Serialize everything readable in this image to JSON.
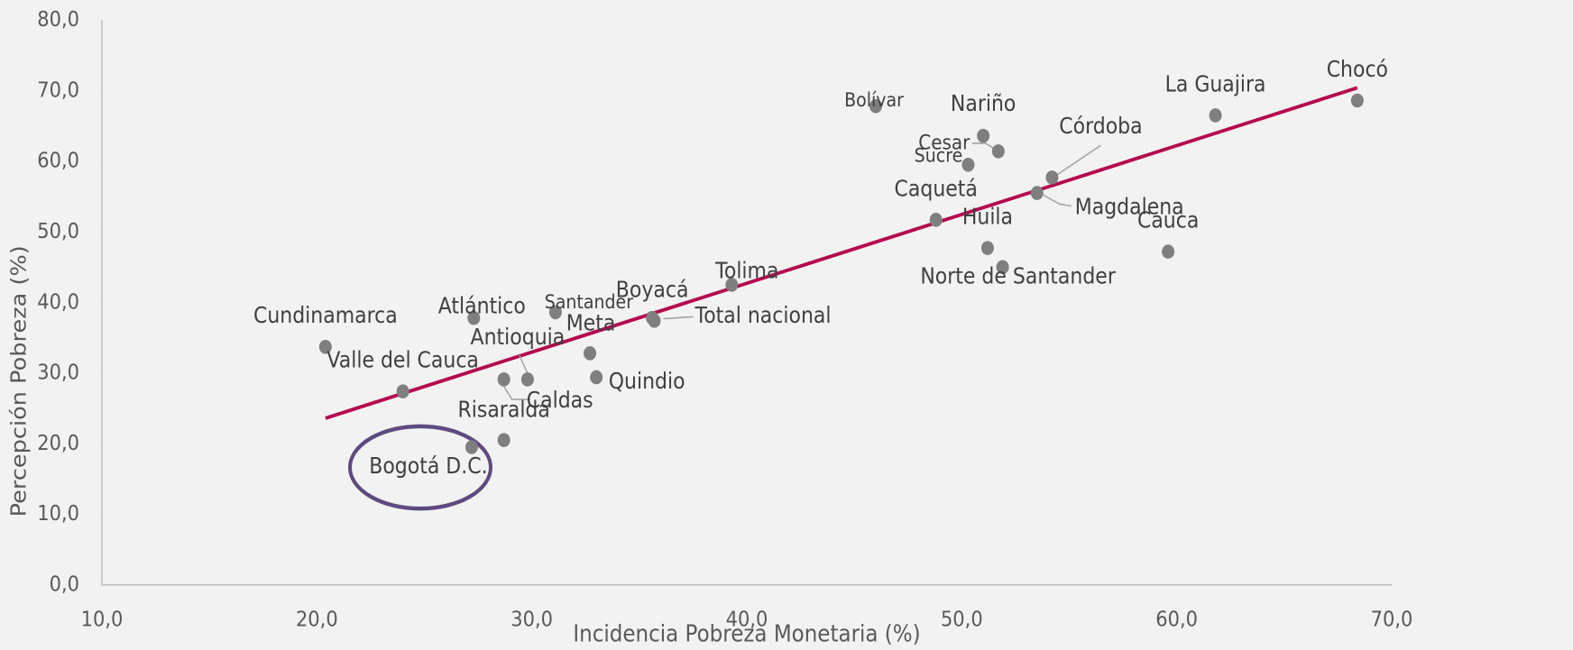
{
  "chart_data": {
    "type": "scatter",
    "xlabel": "Incidencia Pobreza Monetaria (%)",
    "ylabel": "Percepción Pobreza (%)",
    "labels": [
      "Cundinamarca",
      "Valle del Cauca",
      "Bogotá D.C.",
      "Risaralda",
      "Atlántico",
      "Caldas",
      "Antioquia",
      "Santander",
      "Meta",
      "Quindio",
      "Total nacional",
      "Boyacá",
      "Tolima",
      "Bolívar",
      "Caquetá",
      "Sucre",
      "Nariño",
      "Cesar",
      "Huila",
      "Norte de Santander",
      "Magdalena",
      "Córdoba",
      "Cauca",
      "La Guajira",
      "Chocó"
    ],
    "x": [
      20.4,
      24.0,
      27.2,
      28.7,
      27.3,
      28.7,
      29.8,
      31.1,
      32.7,
      33.0,
      35.7,
      35.6,
      39.3,
      46.0,
      48.8,
      50.3,
      51.0,
      51.7,
      51.2,
      51.9,
      53.5,
      54.2,
      59.6,
      61.8,
      68.4
    ],
    "values": [
      33.7,
      27.4,
      19.5,
      20.5,
      37.8,
      29.1,
      29.1,
      38.6,
      32.8,
      29.4,
      37.4,
      37.8,
      42.5,
      67.8,
      51.7,
      59.5,
      63.6,
      61.4,
      47.7,
      45.0,
      55.5,
      57.7,
      47.2,
      66.5,
      68.6
    ],
    "color": "#7f7f7f",
    "trendline": {
      "x": [
        20.4,
        68.4
      ],
      "values": [
        23.6,
        70.4
      ],
      "color": "#b5084f"
    },
    "xlim": [
      10,
      70
    ],
    "xticks": [
      {
        "value": 10,
        "label": "10,0"
      },
      {
        "value": 20,
        "label": "20,0"
      },
      {
        "value": 30,
        "label": "30,0"
      },
      {
        "value": 40,
        "label": "40,0"
      },
      {
        "value": 50,
        "label": "50,0"
      },
      {
        "value": 60,
        "label": "60,0"
      },
      {
        "value": 70,
        "label": "70,0"
      }
    ],
    "ylim": [
      0,
      80
    ],
    "yticks": [
      {
        "value": 0,
        "label": "0,0"
      },
      {
        "value": 10,
        "label": "10,0"
      },
      {
        "value": 20,
        "label": "20,0"
      },
      {
        "value": 30,
        "label": "30,0"
      },
      {
        "value": 40,
        "label": "40,0"
      },
      {
        "value": 50,
        "label": "50,0"
      },
      {
        "value": 60,
        "label": "60,0"
      },
      {
        "value": 70,
        "label": "70,0"
      },
      {
        "value": 80,
        "label": "80,0"
      }
    ]
  }
}
